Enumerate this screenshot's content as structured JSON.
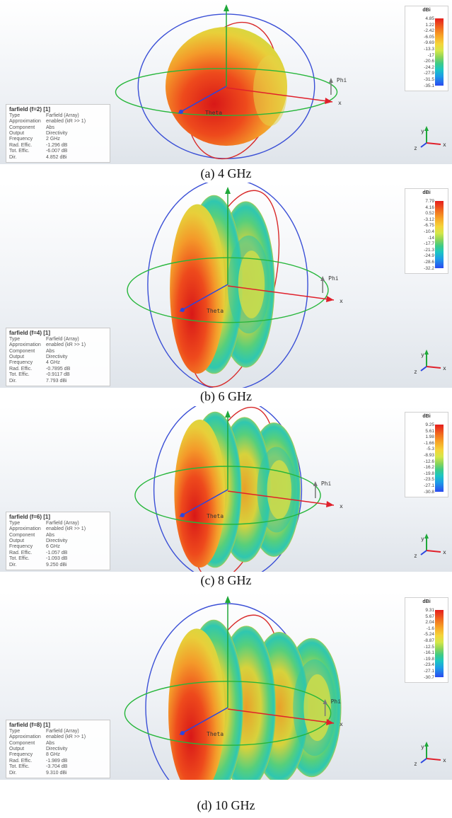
{
  "panels": [
    {
      "caption": "(a) 4 GHz",
      "info": {
        "title": "farfield (f=2) [1]",
        "rows": [
          {
            "k": "Type",
            "v": "Farfield (Array)"
          },
          {
            "k": "Approximation",
            "v": "enabled (kR >> 1)"
          },
          {
            "k": "Component",
            "v": "Abs"
          },
          {
            "k": "Output",
            "v": "Directivity"
          },
          {
            "k": "Frequency",
            "v": "2 GHz"
          },
          {
            "k": "Rad. Effic.",
            "v": "-1.296 dB"
          },
          {
            "k": "Tot. Effic.",
            "v": "-6.007 dB"
          },
          {
            "k": "Dir.",
            "v": "4.852 dBi"
          }
        ]
      },
      "legend": {
        "unit": "dBi",
        "ticks": [
          "4.85",
          "1.22",
          "-2.42",
          "-6.05",
          "-9.69",
          "-13.3",
          "-17",
          "-20.6",
          "-24.2",
          "-27.9",
          "-31.5",
          "-35.1"
        ]
      },
      "labels": {
        "phi": "Phi",
        "theta": "Theta",
        "x": "x",
        "y": "y",
        "z": "z"
      }
    },
    {
      "caption": "(b) 6 GHz",
      "info": {
        "title": "farfield (f=4) [1]",
        "rows": [
          {
            "k": "Type",
            "v": "Farfield (Array)"
          },
          {
            "k": "Approximation",
            "v": "enabled (kR >> 1)"
          },
          {
            "k": "Component",
            "v": "Abs"
          },
          {
            "k": "Output",
            "v": "Directivity"
          },
          {
            "k": "Frequency",
            "v": "4 GHz"
          },
          {
            "k": "Rad. Effic.",
            "v": "-0.7895 dB"
          },
          {
            "k": "Tot. Effic.",
            "v": "-0.9117 dB"
          },
          {
            "k": "Dir.",
            "v": "7.793 dBi"
          }
        ]
      },
      "legend": {
        "unit": "dBi",
        "ticks": [
          "7.79",
          "4.16",
          "0.52",
          "-3.12",
          "-6.75",
          "-10.4",
          "-14",
          "-17.7",
          "-21.3",
          "-24.9",
          "-28.6",
          "-32.2"
        ]
      },
      "labels": {
        "phi": "Phi",
        "theta": "Theta",
        "x": "x",
        "y": "y",
        "z": "z"
      }
    },
    {
      "caption": "(c) 8 GHz",
      "info": {
        "title": "farfield (f=6) [1]",
        "rows": [
          {
            "k": "Type",
            "v": "Farfield (Array)"
          },
          {
            "k": "Approximation",
            "v": "enabled (kR >> 1)"
          },
          {
            "k": "Component",
            "v": "Abs"
          },
          {
            "k": "Output",
            "v": "Directivity"
          },
          {
            "k": "Frequency",
            "v": "6 GHz"
          },
          {
            "k": "Rad. Effic.",
            "v": "-1.057 dB"
          },
          {
            "k": "Tot. Effic.",
            "v": "-1.093 dB"
          },
          {
            "k": "Dir.",
            "v": "9.250 dBi"
          }
        ]
      },
      "legend": {
        "unit": "dBi",
        "ticks": [
          "9.25",
          "5.61",
          "1.98",
          "-1.66",
          "-5.3",
          "-8.93",
          "-12.6",
          "-16.2",
          "-19.8",
          "-23.5",
          "-27.1",
          "-30.8"
        ]
      },
      "labels": {
        "phi": "Phi",
        "theta": "Theta",
        "x": "x",
        "y": "y",
        "z": "z"
      }
    },
    {
      "caption": "(d) 10 GHz",
      "info": {
        "title": "farfield (f=8) [1]",
        "rows": [
          {
            "k": "Type",
            "v": "Farfield (Array)"
          },
          {
            "k": "Approximation",
            "v": "enabled (kR >> 1)"
          },
          {
            "k": "Component",
            "v": "Abs"
          },
          {
            "k": "Output",
            "v": "Directivity"
          },
          {
            "k": "Frequency",
            "v": "8 GHz"
          },
          {
            "k": "Rad. Effic.",
            "v": "-1.989 dB"
          },
          {
            "k": "Tot. Effic.",
            "v": "-3.704 dB"
          },
          {
            "k": "Dir.",
            "v": "9.310 dBi"
          }
        ]
      },
      "legend": {
        "unit": "dBi",
        "ticks": [
          "9.31",
          "5.67",
          "2.04",
          "-1.6",
          "-5.24",
          "-8.87",
          "-12.5",
          "-16.1",
          "-19.8",
          "-23.4",
          "-27.1",
          "-30.7"
        ]
      },
      "labels": {
        "phi": "Phi",
        "theta": "Theta",
        "x": "x",
        "y": "y",
        "z": "z"
      }
    }
  ],
  "colors": {
    "x_axis": "#e0202b",
    "y_axis": "#1fa83a",
    "z_axis": "#2b46e0",
    "ring_blue": "#3a4fd6",
    "ring_red": "#d82a2a",
    "ring_green": "#26b63a"
  }
}
